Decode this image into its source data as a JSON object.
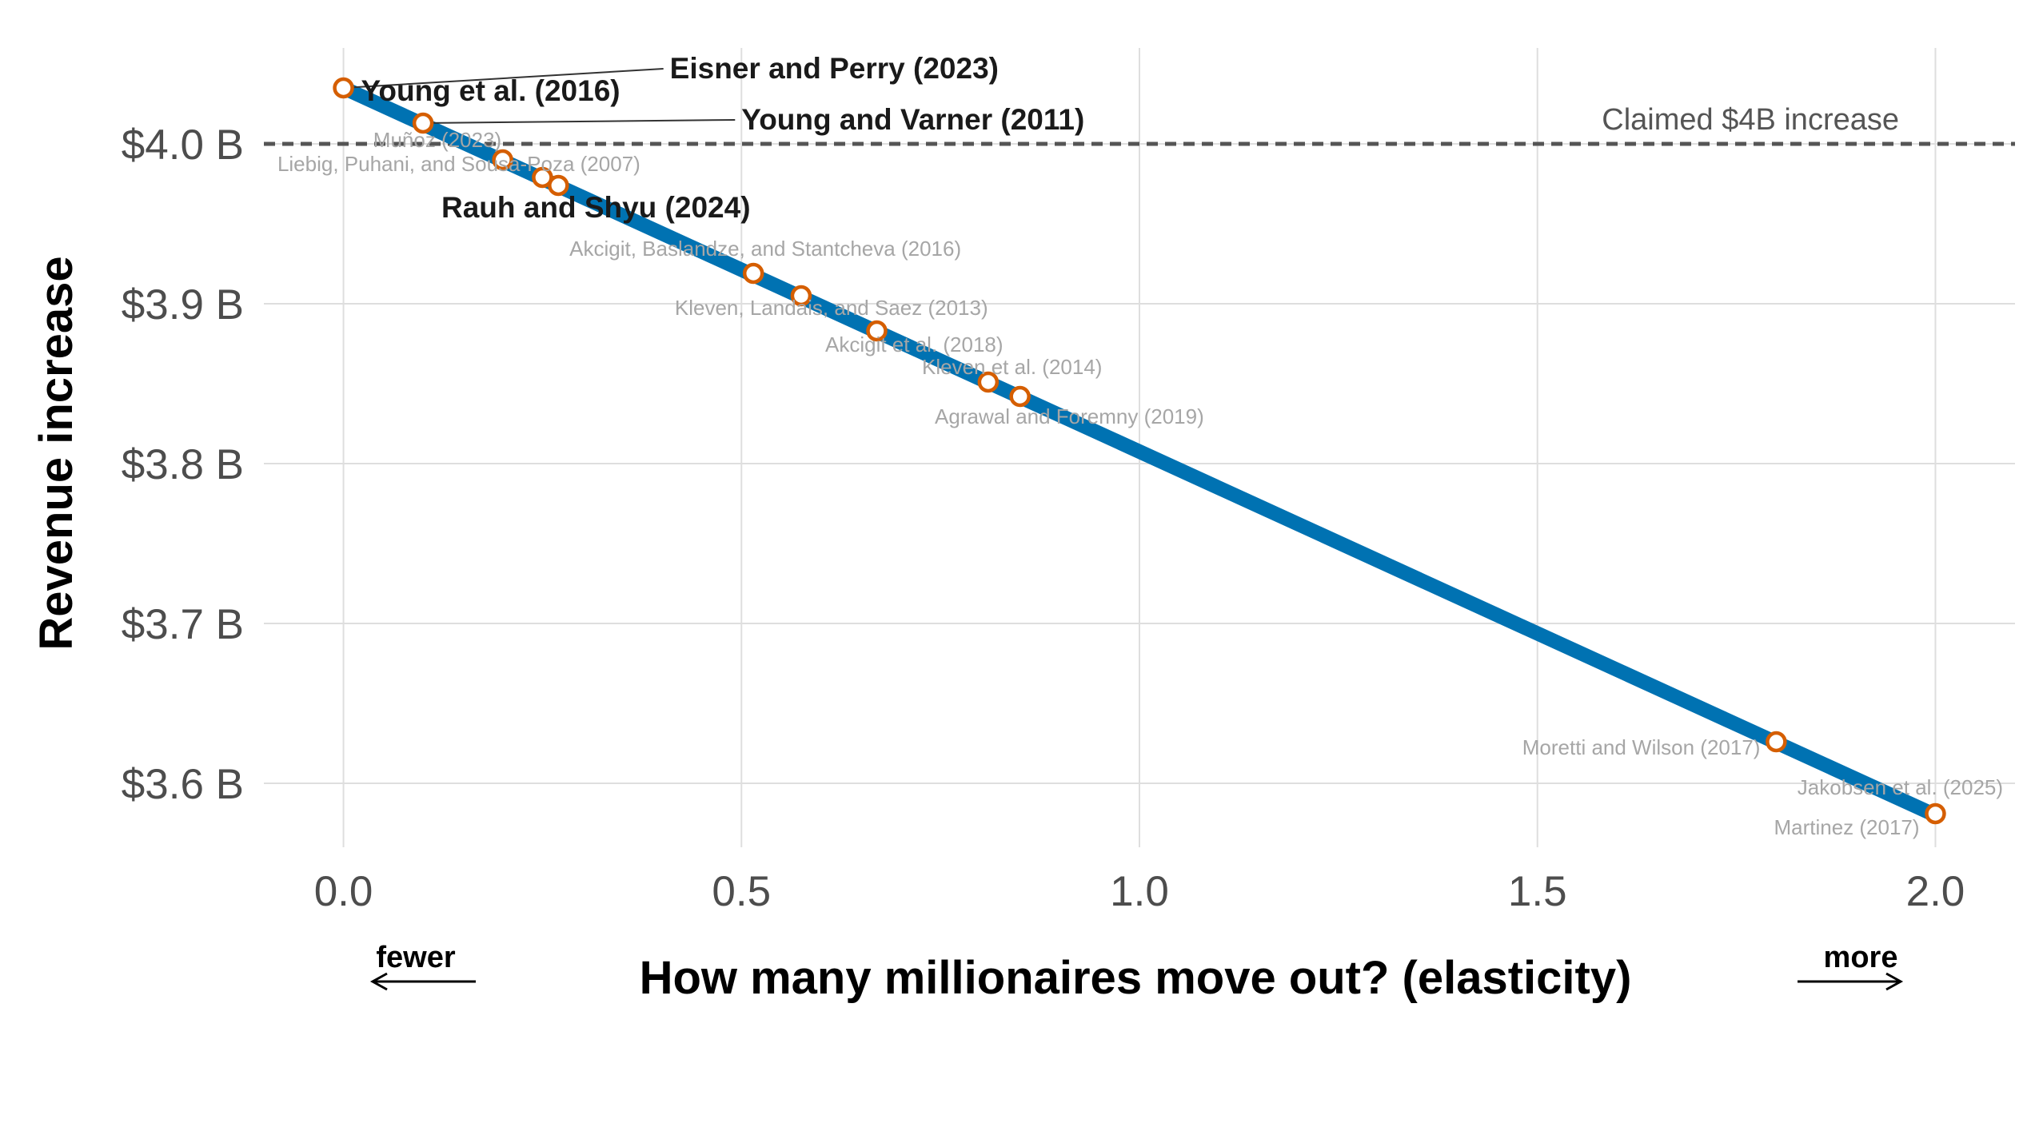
{
  "chart_data": {
    "type": "line",
    "title": "",
    "xlabel": "How many millionaires move out? (elasticity)",
    "ylabel": "Revenue increase",
    "xlim": [
      -0.1,
      2.1
    ],
    "ylim": [
      3.56,
      4.06
    ],
    "x_ticks": [
      {
        "value": 0.0,
        "label": "0.0"
      },
      {
        "value": 0.5,
        "label": "0.5"
      },
      {
        "value": 1.0,
        "label": "1.0"
      },
      {
        "value": 1.5,
        "label": "1.5"
      },
      {
        "value": 2.0,
        "label": "2.0"
      }
    ],
    "y_ticks": [
      {
        "value": 3.6,
        "label": "$3.6 B"
      },
      {
        "value": 3.7,
        "label": "$3.7 B"
      },
      {
        "value": 3.8,
        "label": "$3.8 B"
      },
      {
        "value": 3.9,
        "label": "$3.9 B"
      },
      {
        "value": 4.0,
        "label": "$4.0 B"
      }
    ],
    "grid": true,
    "line": {
      "x": [
        0.0,
        2.0
      ],
      "y": [
        4.035,
        3.58
      ],
      "color": "#0072B2"
    },
    "reference_line": {
      "y": 4.0,
      "label": "Claimed $4B increase",
      "style": "dashed",
      "color": "#555555"
    },
    "direction_labels": {
      "left": "fewer",
      "right": "more"
    },
    "point_color": "#D55E00",
    "studies": [
      {
        "name": "Eisner and Perry (2023)",
        "x": 0.0,
        "y": 4.035,
        "emphasis": true,
        "anchor": "start",
        "lx": 0.41,
        "ly": 4.041,
        "leader": true
      },
      {
        "name": "Young et al. (2016)",
        "x": 0.0,
        "y": 4.035,
        "emphasis": true,
        "anchor": "start",
        "lx": 0.022,
        "ly": 4.027,
        "leader": false
      },
      {
        "name": "Young and Varner (2011)",
        "x": 0.1,
        "y": 4.013,
        "emphasis": true,
        "anchor": "start",
        "lx": 0.5,
        "ly": 4.009,
        "leader": true
      },
      {
        "name": "Muñoz (2023)",
        "x": 0.2,
        "y": 3.99,
        "emphasis": false,
        "anchor": "middle",
        "lx": 0.118,
        "ly": 3.998,
        "leader": false
      },
      {
        "name": "Liebig, Puhani, and Sousa-Poza (2007)",
        "x": 0.25,
        "y": 3.979,
        "emphasis": false,
        "anchor": "middle",
        "lx": 0.145,
        "ly": 3.983,
        "leader": false
      },
      {
        "name": "Rauh and Shyu (2024)",
        "x": 0.27,
        "y": 3.974,
        "emphasis": true,
        "anchor": "start",
        "lx": 0.123,
        "ly": 3.954,
        "leader": false
      },
      {
        "name": "Akcigit, Baslandze, and Stantcheva (2016)",
        "x": 0.515,
        "y": 3.919,
        "emphasis": false,
        "anchor": "middle",
        "lx": 0.53,
        "ly": 3.93,
        "leader": false
      },
      {
        "name": "Kleven, Landais, and Saez (2013)",
        "x": 0.575,
        "y": 3.905,
        "emphasis": false,
        "anchor": "middle",
        "lx": 0.613,
        "ly": 3.893,
        "leader": false
      },
      {
        "name": "Akcigit et al. (2018)",
        "x": 0.67,
        "y": 3.883,
        "emphasis": false,
        "anchor": "middle",
        "lx": 0.717,
        "ly": 3.87,
        "leader": false
      },
      {
        "name": "Kleven et al. (2014)",
        "x": 0.81,
        "y": 3.851,
        "emphasis": false,
        "anchor": "middle",
        "lx": 0.84,
        "ly": 3.856,
        "leader": false
      },
      {
        "name": "Agrawal and Foremny (2019)",
        "x": 0.85,
        "y": 3.842,
        "emphasis": false,
        "anchor": "middle",
        "lx": 0.912,
        "ly": 3.825,
        "leader": false
      },
      {
        "name": "Moretti and Wilson (2017)",
        "x": 1.8,
        "y": 3.626,
        "emphasis": false,
        "anchor": "end",
        "lx": 1.78,
        "ly": 3.618,
        "leader": false
      },
      {
        "name": "Jakobsen et al. (2025)",
        "x": 2.0,
        "y": 3.581,
        "emphasis": false,
        "anchor": "end",
        "lx": 2.085,
        "ly": 3.593,
        "leader": false
      },
      {
        "name": "Martinez (2017)",
        "x": 2.0,
        "y": 3.581,
        "emphasis": false,
        "anchor": "end",
        "lx": 1.98,
        "ly": 3.568,
        "leader": false
      }
    ]
  }
}
